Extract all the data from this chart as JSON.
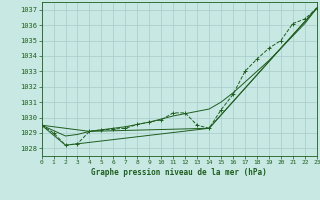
{
  "title": "Graphe pression niveau de la mer (hPa)",
  "background_color": "#c8e8e4",
  "grid_color": "#a8cccc",
  "line_color": "#1e5e1e",
  "xlim": [
    0,
    23
  ],
  "ylim": [
    1027.5,
    1037.5
  ],
  "yticks": [
    1028,
    1029,
    1030,
    1031,
    1032,
    1033,
    1034,
    1035,
    1036,
    1037
  ],
  "xticks": [
    0,
    1,
    2,
    3,
    4,
    5,
    6,
    7,
    8,
    9,
    10,
    11,
    12,
    13,
    14,
    15,
    16,
    17,
    18,
    19,
    20,
    21,
    22,
    23
  ],
  "series_dot": {
    "x": [
      0,
      1,
      2,
      3,
      4,
      5,
      6,
      7,
      8,
      9,
      10,
      11,
      12,
      13,
      14,
      15,
      16,
      17,
      18,
      19,
      20,
      21,
      22,
      23
    ],
    "y": [
      1029.5,
      1029.0,
      1028.2,
      1028.3,
      1029.1,
      1029.2,
      1029.25,
      1029.3,
      1029.55,
      1029.7,
      1029.85,
      1030.3,
      1030.3,
      1029.5,
      1029.3,
      1030.5,
      1031.5,
      1033.0,
      1033.8,
      1034.5,
      1035.0,
      1036.1,
      1036.4,
      1037.1
    ]
  },
  "series_smooth": {
    "x": [
      0,
      1,
      2,
      3,
      4,
      5,
      6,
      7,
      8,
      9,
      10,
      11,
      12,
      13,
      14,
      15,
      16,
      17,
      18,
      19,
      20,
      21,
      22,
      23
    ],
    "y": [
      1029.5,
      1029.15,
      1028.8,
      1028.9,
      1029.1,
      1029.2,
      1029.3,
      1029.4,
      1029.55,
      1029.7,
      1029.9,
      1030.1,
      1030.25,
      1030.4,
      1030.55,
      1031.0,
      1031.6,
      1032.3,
      1033.0,
      1033.7,
      1034.5,
      1035.3,
      1036.1,
      1037.1
    ]
  },
  "series_line1": {
    "x": [
      0,
      4,
      14,
      23
    ],
    "y": [
      1029.5,
      1029.1,
      1029.3,
      1037.1
    ]
  },
  "series_line2": {
    "x": [
      0,
      2,
      14,
      23
    ],
    "y": [
      1029.5,
      1028.2,
      1029.3,
      1037.1
    ]
  }
}
